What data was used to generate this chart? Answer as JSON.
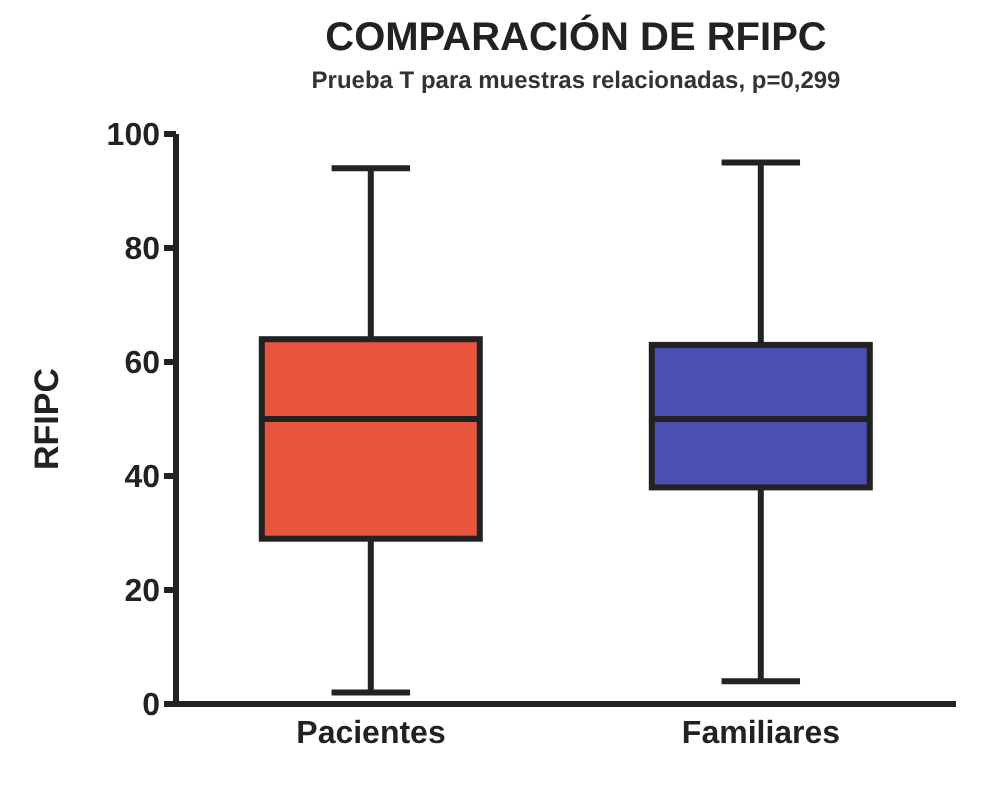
{
  "chart_data": {
    "type": "box",
    "title": "COMPARACIÓN DE RFIPC",
    "subtitle": "Prueba T para muestras relacionadas, p=0,299",
    "ylabel": "RFIPC",
    "categories": [
      "Pacientes",
      "Familiares"
    ],
    "colors": [
      "#e8553f",
      "#4a4fb0"
    ],
    "boxes": [
      {
        "low": 2,
        "q1": 29,
        "median": 50,
        "q3": 64,
        "high": 94
      },
      {
        "low": 4,
        "q1": 38,
        "median": 50,
        "q3": 63,
        "high": 95
      }
    ],
    "ylim": [
      0,
      100
    ],
    "yticks": [
      0,
      20,
      40,
      60,
      80,
      100
    ],
    "grid": false,
    "legend": false
  }
}
